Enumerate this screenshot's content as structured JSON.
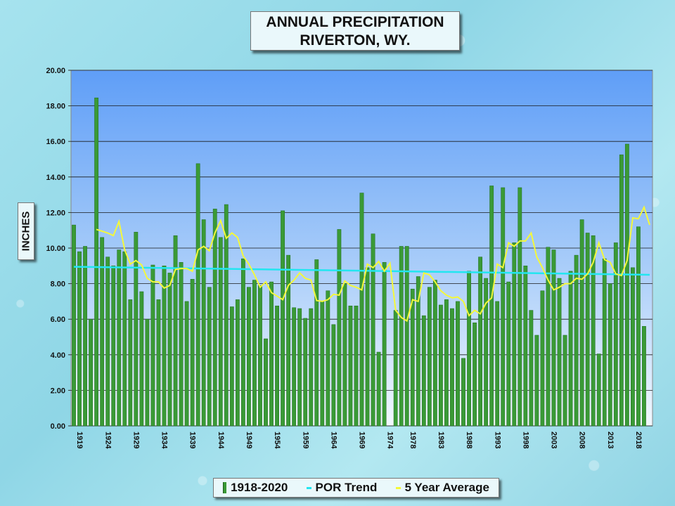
{
  "title": {
    "line1": "ANNUAL PRECIPITATION",
    "line2": "RIVERTON, WY."
  },
  "ylabel": "INCHES",
  "legend": {
    "bars": "1918-2020",
    "trend": "POR Trend",
    "average": "5 Year Average"
  },
  "colors": {
    "bar": "#3a9a36",
    "trend": "#22e6f0",
    "average": "#f4f83a",
    "plot_top": "#5f9ef7",
    "plot_bottom": "#eef6ff"
  },
  "chart_data": {
    "type": "bar",
    "title": "ANNUAL PRECIPITATION RIVERTON, WY.",
    "ylabel": "INCHES",
    "xlabel": "",
    "ylim": [
      0,
      20
    ],
    "yticks": [
      "0.00",
      "2.00",
      "4.00",
      "6.00",
      "8.00",
      "10.00",
      "12.00",
      "14.00",
      "16.00",
      "18.00",
      "20.00"
    ],
    "xtick_labels": [
      "1919",
      "1924",
      "1929",
      "1934",
      "1939",
      "1944",
      "1949",
      "1954",
      "1959",
      "1964",
      "1969",
      "1974",
      "1978",
      "1983",
      "1988",
      "1993",
      "1998",
      "2003",
      "2008",
      "2013",
      "2018"
    ],
    "grid": true,
    "legend_position": "bottom",
    "series": [
      {
        "name": "1918-2020",
        "type": "bar",
        "years": [
          1918,
          1919,
          1920,
          1921,
          1922,
          1923,
          1924,
          1925,
          1926,
          1927,
          1928,
          1929,
          1930,
          1931,
          1932,
          1933,
          1934,
          1935,
          1936,
          1937,
          1938,
          1939,
          1940,
          1941,
          1942,
          1943,
          1944,
          1945,
          1946,
          1947,
          1948,
          1949,
          1950,
          1951,
          1952,
          1953,
          1954,
          1955,
          1956,
          1957,
          1958,
          1959,
          1960,
          1961,
          1962,
          1963,
          1964,
          1965,
          1966,
          1967,
          1968,
          1969,
          1970,
          1971,
          1972,
          1973,
          1974,
          1975,
          1976,
          1977,
          1978,
          1979,
          1980,
          1981,
          1982,
          1983,
          1984,
          1985,
          1986,
          1987,
          1988,
          1989,
          1990,
          1991,
          1992,
          1993,
          1994,
          1995,
          1996,
          1997,
          1998,
          1999,
          2000,
          2001,
          2002,
          2003,
          2004,
          2005,
          2006,
          2007,
          2008,
          2009,
          2010,
          2011,
          2012,
          2013,
          2014,
          2015,
          2016,
          2017,
          2018,
          2019,
          2020
        ],
        "values": [
          11.3,
          9.8,
          10.1,
          6.0,
          18.45,
          10.6,
          9.5,
          9.0,
          9.9,
          9.8,
          7.1,
          10.9,
          7.55,
          6.0,
          9.05,
          7.1,
          9.0,
          8.6,
          10.7,
          9.2,
          7.0,
          8.25,
          14.75,
          11.6,
          7.8,
          12.2,
          10.6,
          12.45,
          6.7,
          7.1,
          9.4,
          7.8,
          8.2,
          7.9,
          4.9,
          8.1,
          6.75,
          12.1,
          9.6,
          6.65,
          6.6,
          6.05,
          6.6,
          9.35,
          7.0,
          7.6,
          5.7,
          11.05,
          8.0,
          6.75,
          6.75,
          13.1,
          8.9,
          10.8,
          4.15,
          9.2,
          0,
          6.5,
          10.1,
          10.1,
          7.7,
          8.4,
          6.2,
          7.8,
          8.2,
          6.8,
          7.1,
          6.6,
          7.0,
          3.8,
          8.7,
          5.8,
          9.5,
          8.3,
          13.5,
          7.0,
          13.4,
          8.1,
          10.3,
          13.4,
          9.0,
          6.5,
          5.1,
          7.6,
          10.05,
          9.9,
          8.3,
          5.1,
          8.7,
          9.6,
          11.6,
          10.85,
          10.7,
          4.05,
          9.4,
          8.0,
          10.3,
          15.25,
          15.85,
          8.9,
          11.2,
          5.6,
          0
        ]
      },
      {
        "name": "POR Trend",
        "type": "line",
        "x": [
          1918,
          2020
        ],
        "values": [
          8.95,
          8.5
        ]
      },
      {
        "name": "5 Year Average",
        "type": "line",
        "years": [
          1922,
          1923,
          1924,
          1925,
          1926,
          1927,
          1928,
          1929,
          1930,
          1931,
          1932,
          1933,
          1934,
          1935,
          1936,
          1937,
          1938,
          1939,
          1940,
          1941,
          1942,
          1943,
          1944,
          1945,
          1946,
          1947,
          1948,
          1949,
          1950,
          1951,
          1952,
          1953,
          1954,
          1955,
          1956,
          1957,
          1958,
          1959,
          1960,
          1961,
          1962,
          1963,
          1964,
          1965,
          1966,
          1967,
          1968,
          1969,
          1970,
          1971,
          1972,
          1973,
          1974,
          1975,
          1976,
          1977,
          1978,
          1979,
          1980,
          1981,
          1982,
          1983,
          1984,
          1985,
          1986,
          1987,
          1988,
          1989,
          1990,
          1991,
          1992,
          1993,
          1994,
          1995,
          1996,
          1997,
          1998,
          1999,
          2000,
          2001,
          2002,
          2003,
          2004,
          2005,
          2006,
          2007,
          2008,
          2009,
          2010,
          2011,
          2012,
          2013,
          2014,
          2015,
          2016,
          2017,
          2018,
          2019,
          2020
        ],
        "values": [
          11.05,
          10.95,
          10.85,
          10.7,
          11.5,
          9.9,
          9.1,
          9.3,
          9.05,
          8.3,
          8.1,
          8.1,
          7.75,
          7.9,
          8.8,
          8.85,
          8.85,
          8.7,
          9.9,
          10.1,
          9.85,
          10.85,
          11.55,
          10.55,
          10.85,
          10.6,
          9.55,
          9.1,
          8.5,
          7.8,
          8.1,
          7.5,
          7.3,
          7.1,
          7.9,
          8.2,
          8.6,
          8.3,
          8.2,
          7.05,
          7.0,
          7.1,
          7.4,
          7.35,
          8.15,
          7.9,
          7.8,
          7.65,
          9.1,
          8.9,
          9.25,
          8.7,
          9.15,
          6.5,
          6.1,
          5.9,
          7.1,
          7.0,
          8.6,
          8.5,
          8.1,
          7.6,
          7.35,
          7.2,
          7.25,
          7.0,
          6.2,
          6.5,
          6.3,
          6.9,
          7.2,
          9.1,
          8.9,
          10.3,
          10.1,
          10.4,
          10.4,
          10.85,
          9.5,
          8.9,
          8.2,
          7.65,
          7.8,
          8.0,
          8.0,
          8.3,
          8.25,
          8.55,
          9.2,
          10.3,
          9.35,
          9.2,
          8.55,
          8.45,
          9.3,
          11.7,
          11.65,
          12.3,
          11.3
        ]
      }
    ]
  }
}
